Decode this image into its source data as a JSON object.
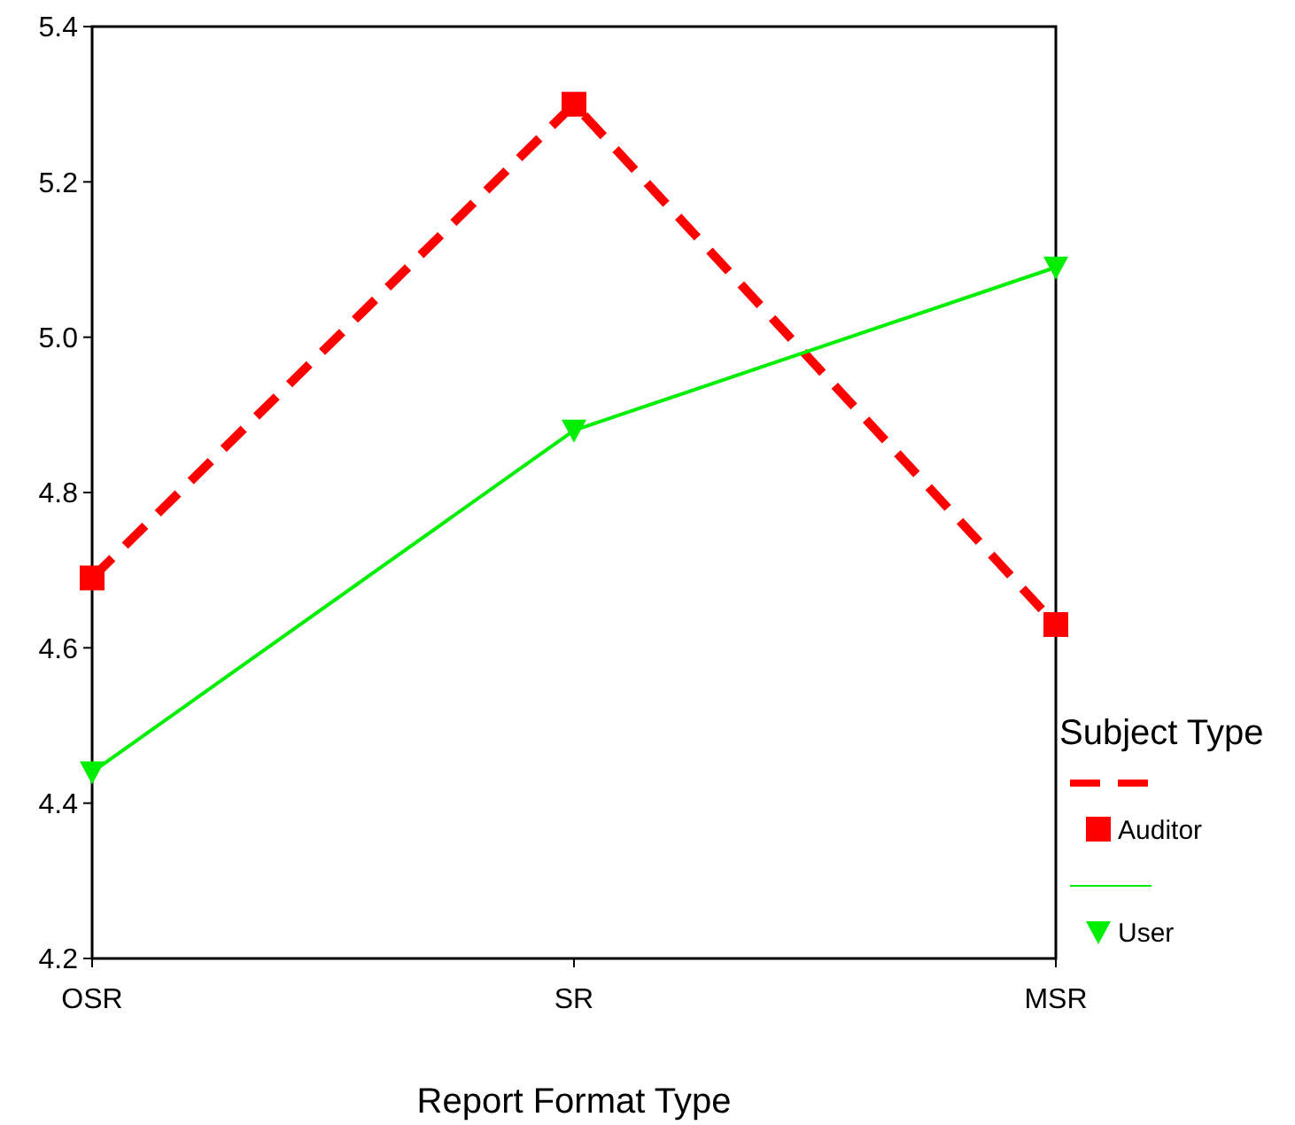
{
  "chart_data": {
    "type": "line",
    "xlabel": "Report Format Type",
    "legend_title": "Subject Type",
    "legend": "bottom right",
    "categories": [
      "OSR",
      "SR",
      "MSR"
    ],
    "ylim": [
      4.2,
      5.4
    ],
    "yticks": [
      {
        "value": 4.2,
        "label": "4.2"
      },
      {
        "value": 4.4,
        "label": "4.4"
      },
      {
        "value": 4.6,
        "label": "4.6"
      },
      {
        "value": 4.8,
        "label": "4.8"
      },
      {
        "value": 5.0,
        "label": "5.0"
      },
      {
        "value": 5.2,
        "label": "5.2"
      },
      {
        "value": 5.4,
        "label": "5.4"
      }
    ],
    "grid": false,
    "series": [
      {
        "name": "Auditor",
        "color": "#ff0000",
        "values": [
          4.69,
          5.3,
          4.63
        ],
        "line_style": "dashed",
        "marker": "square"
      },
      {
        "name": "User",
        "color": "#00ee00",
        "values": [
          4.44,
          4.88,
          5.09
        ],
        "line_style": "solid",
        "marker": "triangle"
      }
    ]
  }
}
